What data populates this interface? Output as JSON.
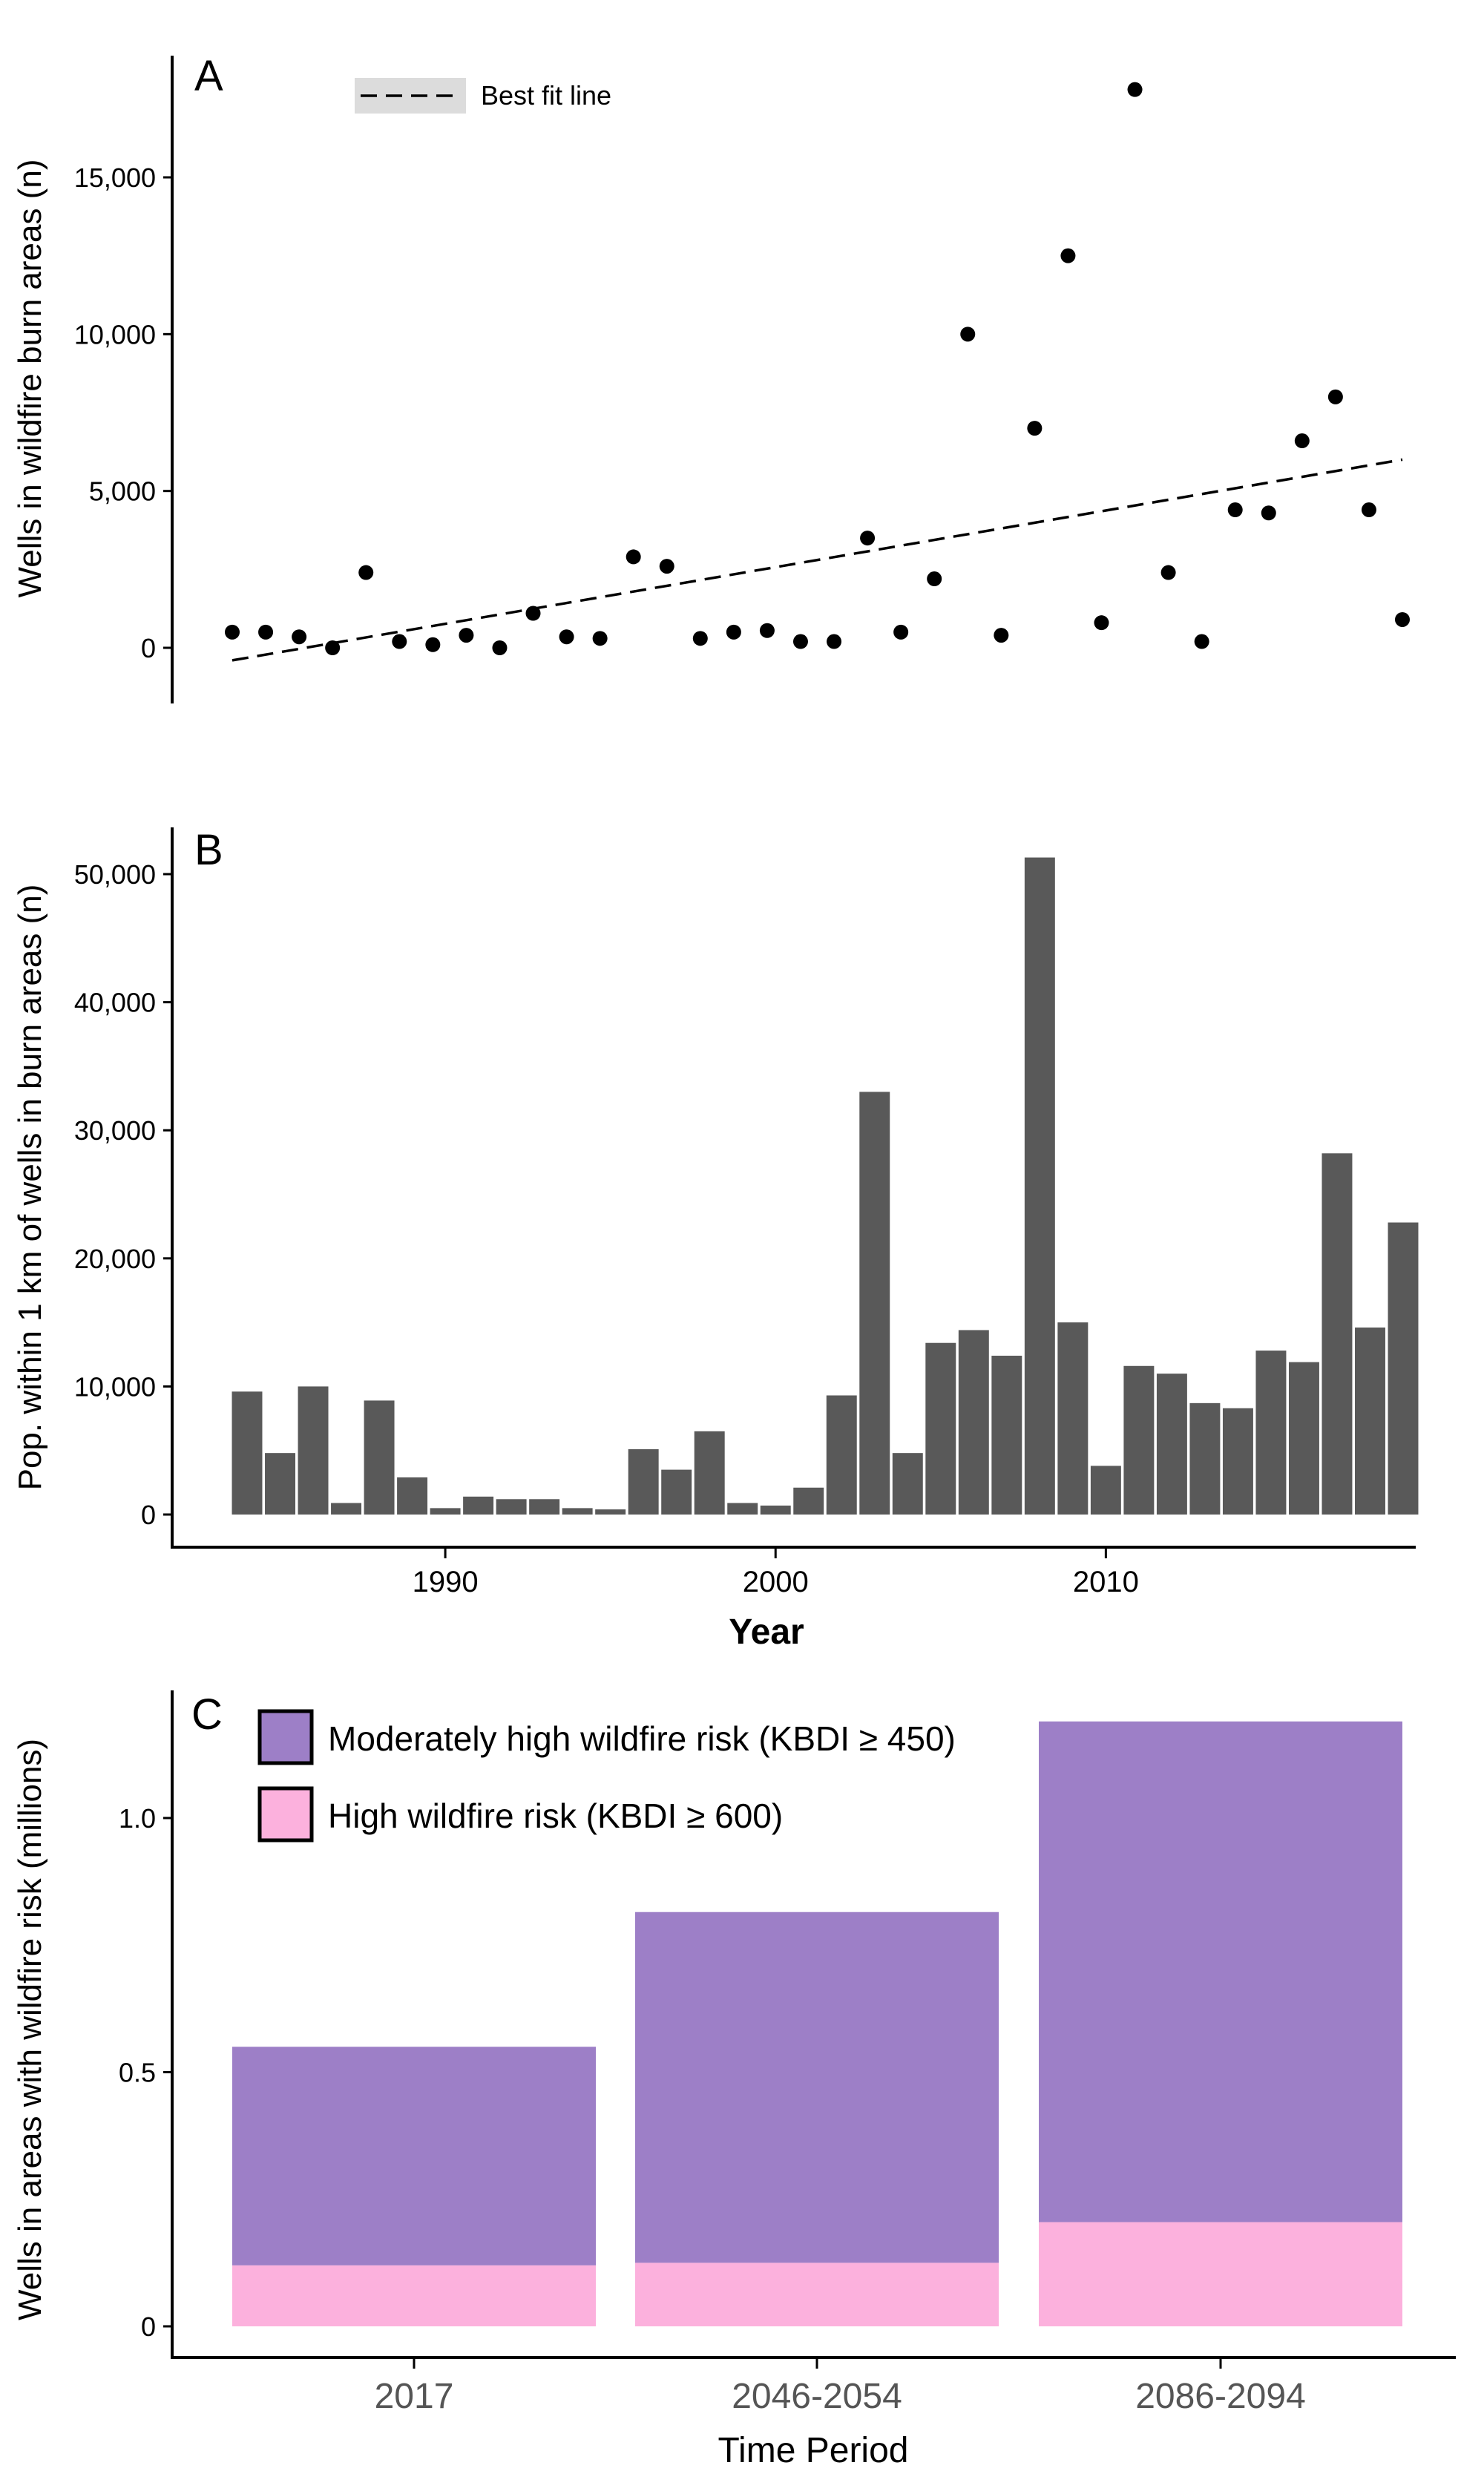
{
  "chart_data": [
    {
      "panel": "A",
      "type": "scatter",
      "ylabel": "Wells in wildfire burn areas (n)",
      "xlim": [
        1983,
        2020
      ],
      "ylim": [
        -2000,
        19000
      ],
      "yticks": [
        0,
        5000,
        10000,
        15000
      ],
      "ytick_labels": [
        "0",
        "5,000",
        "10,000",
        "15,000"
      ],
      "legend": {
        "label": "Best fit line",
        "position": "top-left"
      },
      "fit_line": {
        "x": [
          1984,
          2019
        ],
        "y": [
          -400,
          6000
        ],
        "ci_halfwidth": 500
      },
      "x": [
        1984,
        1985,
        1986,
        1987,
        1988,
        1989,
        1990,
        1991,
        1992,
        1993,
        1994,
        1995,
        1996,
        1997,
        1998,
        1999,
        2000,
        2001,
        2002,
        2003,
        2004,
        2005,
        2006,
        2007,
        2008,
        2009,
        2010,
        2011,
        2012,
        2013,
        2014,
        2015,
        2016,
        2017,
        2018,
        2019
      ],
      "y": [
        500,
        500,
        350,
        0,
        2400,
        200,
        100,
        400,
        0,
        1100,
        350,
        300,
        2900,
        2600,
        300,
        500,
        550,
        200,
        200,
        3500,
        500,
        2200,
        10000,
        400,
        7000,
        12500,
        800,
        17800,
        2400,
        200,
        4400,
        4300,
        6600,
        8000,
        4400,
        900
      ]
    },
    {
      "panel": "B",
      "type": "bar",
      "ylabel": "Pop. within 1 km of wells in burn areas (n)",
      "xlabel": "Year",
      "xlim": [
        1983.5,
        2019.5
      ],
      "ylim": [
        0,
        54000
      ],
      "yticks": [
        0,
        10000,
        20000,
        30000,
        40000,
        50000
      ],
      "ytick_labels": [
        "0",
        "10,000",
        "20,000",
        "30,000",
        "40,000",
        "50,000"
      ],
      "xticks": [
        1990,
        2000,
        2010
      ],
      "xtick_labels": [
        "1990",
        "2000",
        "2010"
      ],
      "x": [
        1984,
        1985,
        1986,
        1987,
        1988,
        1989,
        1990,
        1991,
        1992,
        1993,
        1994,
        1995,
        1996,
        1997,
        1998,
        1999,
        2000,
        2001,
        2002,
        2003,
        2004,
        2005,
        2006,
        2007,
        2008,
        2009,
        2010,
        2011,
        2012,
        2013,
        2014,
        2015,
        2016,
        2017,
        2018,
        2019
      ],
      "values": [
        9600,
        4800,
        10000,
        900,
        8900,
        2900,
        500,
        1400,
        1200,
        1200,
        500,
        400,
        5100,
        3500,
        6500,
        900,
        700,
        2100,
        9300,
        33000,
        4800,
        13400,
        14400,
        12400,
        51300,
        15000,
        3800,
        11600,
        11000,
        8700,
        8300,
        12800,
        11900,
        28200,
        14600,
        22800
      ],
      "color": "#595959"
    },
    {
      "panel": "C",
      "type": "bar",
      "stacked": true,
      "ylabel": "Wells in areas with wildfire risk (millions)",
      "xlabel": "Time Period",
      "ylim": [
        -0.05,
        1.25
      ],
      "yticks": [
        0,
        0.5,
        1.0
      ],
      "ytick_labels": [
        "0",
        "0.5",
        "1.0"
      ],
      "categories": [
        "2017",
        "2046-2054",
        "2086-2094"
      ],
      "legend_position": "top-left",
      "series": [
        {
          "name": "High wildfire risk (KBDI ≥ 600)",
          "values": [
            0.12,
            0.125,
            0.205
          ],
          "color": "#fcb1dd"
        },
        {
          "name": "Moderately high wildfire risk (KBDI ≥ 450)",
          "values": [
            0.43,
            0.69,
            0.985
          ],
          "color": "#9d7fc7"
        }
      ]
    }
  ]
}
